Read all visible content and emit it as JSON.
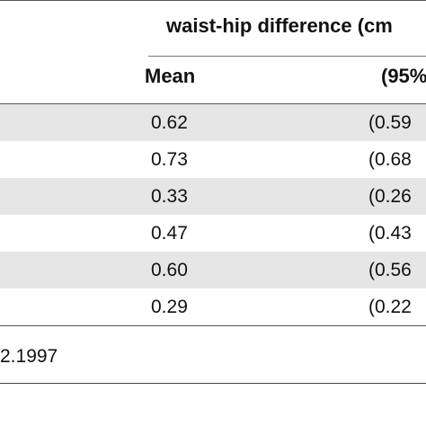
{
  "table": {
    "group_header": "waist-hip difference (cm",
    "columns": {
      "mean": "Mean",
      "ci": "(95%"
    },
    "rows": [
      {
        "mean": "0.62",
        "ci": "(0.59",
        "shaded": true
      },
      {
        "mean": "0.73",
        "ci": "(0.68",
        "shaded": false
      },
      {
        "mean": "0.33",
        "ci": "(0.26",
        "shaded": true
      },
      {
        "mean": "0.47",
        "ci": "(0.43",
        "shaded": false
      },
      {
        "mean": "0.60",
        "ci": "(0.56",
        "shaded": true
      },
      {
        "mean": "0.29",
        "ci": "(0.22",
        "shaded": false
      }
    ],
    "footnote": "2.1997"
  }
}
